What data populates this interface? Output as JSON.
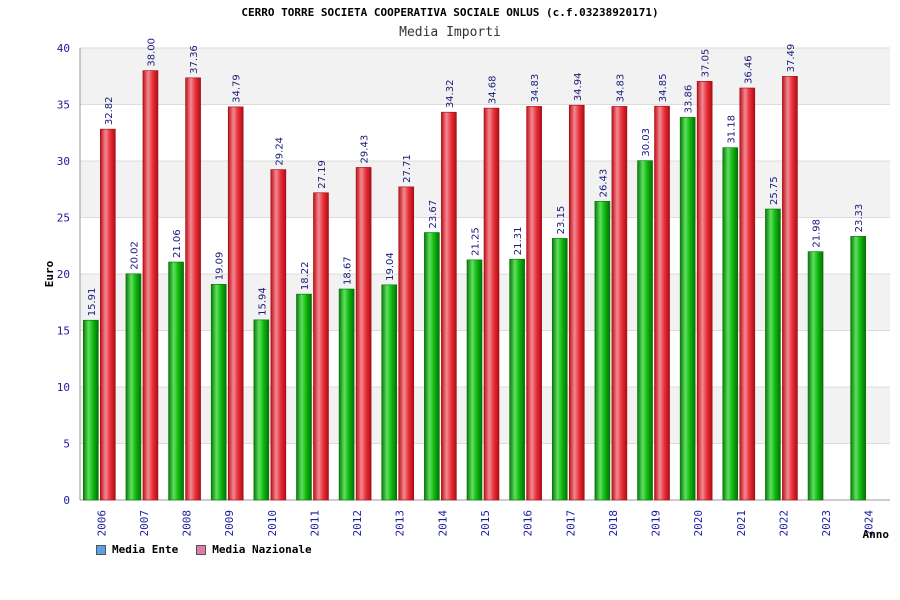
{
  "chart_data": {
    "type": "bar",
    "title": "CERRO TORRE SOCIETA COOPERATIVA SOCIALE ONLUS (c.f.03238920171)",
    "subtitle": "Media Importi",
    "xlabel": "Anno",
    "ylabel": "Euro",
    "ylim": [
      0,
      40
    ],
    "yticks": [
      0,
      5,
      10,
      15,
      20,
      25,
      30,
      35,
      40
    ],
    "grid": true,
    "legend_position": "bottom-left",
    "categories": [
      "2006",
      "2007",
      "2008",
      "2009",
      "2010",
      "2011",
      "2012",
      "2013",
      "2014",
      "2015",
      "2016",
      "2017",
      "2018",
      "2019",
      "2020",
      "2021",
      "2022",
      "2023",
      "2024"
    ],
    "series": [
      {
        "name": "Media Ente",
        "color": "#00b000",
        "legend_color": "#5aa0e6",
        "values": [
          15.91,
          20.02,
          21.06,
          19.09,
          15.94,
          18.22,
          18.67,
          19.04,
          23.67,
          21.25,
          21.31,
          23.15,
          26.43,
          30.03,
          33.86,
          31.18,
          25.75,
          21.98,
          23.33
        ],
        "labels": [
          "15.91",
          "20.02",
          "21.06",
          "19.09",
          "15.94",
          "18.22",
          "18.67",
          "19.04",
          "23.67",
          "21.25",
          "21.31",
          "23.15",
          "26.43",
          "30.03",
          "33.86",
          "31.18",
          "25.75",
          "21.98",
          "23.33"
        ]
      },
      {
        "name": "Media Nazionale",
        "color": "#e8202a",
        "legend_color": "#e07aa8",
        "values": [
          32.82,
          38.0,
          37.36,
          34.79,
          29.24,
          27.19,
          29.43,
          27.71,
          34.32,
          34.68,
          34.83,
          34.94,
          34.83,
          34.85,
          37.05,
          36.46,
          37.49,
          null,
          null
        ],
        "labels": [
          "32.82",
          "38.00",
          "37.36",
          "34.79",
          "29.24",
          "27.19",
          "29.43",
          "27.71",
          "34.32",
          "34.68",
          "34.83",
          "34.94",
          "34.83",
          "34.85",
          "37.05",
          "36.46",
          "37.49",
          null,
          null
        ]
      }
    ]
  }
}
